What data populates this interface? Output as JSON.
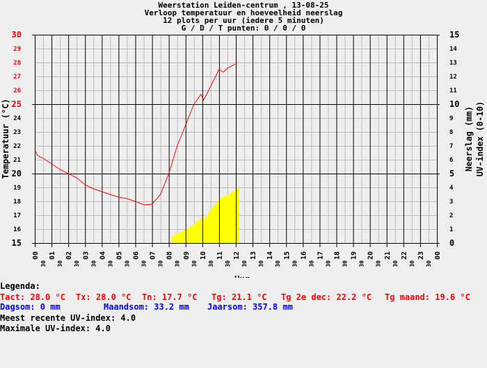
{
  "title_lines": [
    "Weerstation Leiden-centrum , 13-08-25",
    "Verloop temperatuur en hoeveelheid neerslag",
    "12 plots per uur (iedere 5 minuten)",
    "G / D / T punten: 0 / 0 / 0"
  ],
  "colors": {
    "background": "#eeeeee",
    "temperature": "#ff0000",
    "uv": "#ffff00",
    "grid_minor": "#bbbbbb",
    "grid_major": "#000000",
    "legend_temp": "#ff0000",
    "legend_rain": "#0000ff"
  },
  "chart_data": {
    "type": "line",
    "xlabel": "Uur",
    "ylabel_left": "Temperatuur (°C)",
    "ylabel_right": [
      "Neerslag (mm)",
      "UV-index (0-10)"
    ],
    "xlim": [
      "00:00",
      "24:00"
    ],
    "ylim_left": [
      15,
      30
    ],
    "ylim_right": [
      0,
      15
    ],
    "grid": true,
    "x_tick_hours": [
      "00",
      "01",
      "02",
      "03",
      "04",
      "05",
      "06",
      "07",
      "08",
      "09",
      "10",
      "11",
      "12",
      "13",
      "14",
      "15",
      "16",
      "17",
      "18",
      "19",
      "20",
      "21",
      "22",
      "23",
      "00"
    ],
    "x_tick_half": "30",
    "y_ticks_left": [
      15,
      16,
      17,
      18,
      19,
      20,
      21,
      22,
      23,
      24,
      25,
      26,
      27,
      28,
      29,
      30
    ],
    "y_ticks_right": [
      0,
      1,
      2,
      3,
      4,
      5,
      6,
      7,
      8,
      9,
      10,
      11,
      12,
      13,
      14,
      15
    ],
    "series": [
      {
        "type": "line",
        "axis": "left",
        "color": "#ff0000",
        "x": [
          "00:00",
          "00:10",
          "00:30",
          "01:00",
          "01:30",
          "02:00",
          "02:30",
          "03:00",
          "03:30",
          "04:00",
          "04:30",
          "05:00",
          "05:30",
          "06:00",
          "06:30",
          "07:00",
          "07:30",
          "08:00",
          "08:30",
          "09:00",
          "09:30",
          "09:55",
          "10:05",
          "10:30",
          "11:00",
          "11:15",
          "11:30",
          "12:00",
          "12:05"
        ],
        "y": [
          21.7,
          21.3,
          21.1,
          20.7,
          20.3,
          20.0,
          19.7,
          19.2,
          18.9,
          18.7,
          18.5,
          18.3,
          18.2,
          18.0,
          17.75,
          17.8,
          18.5,
          20.0,
          22.0,
          23.5,
          25.0,
          25.7,
          25.3,
          26.3,
          27.5,
          27.3,
          27.6,
          27.9,
          28.0
        ]
      }
    ]
  },
  "uv_series": {
    "type": "area",
    "axis": "right",
    "color": "#ffff00",
    "x": [
      "08:10",
      "08:30",
      "09:00",
      "09:30",
      "10:00",
      "10:05",
      "10:30",
      "11:00",
      "11:30",
      "12:00",
      "12:05"
    ],
    "y": [
      0.5,
      0.7,
      1.0,
      1.4,
      1.95,
      1.7,
      2.5,
      3.2,
      3.5,
      3.9,
      4.0
    ]
  },
  "legend": {
    "heading": "Legenda:",
    "temp": [
      "Tact: 28.0 °C",
      "Tx: 28.0 °C",
      "Tn: 17.7 °C",
      "Tg: 21.1 °C",
      "Tg 2e dec: 22.2 °C",
      "Tg maand: 19.6 °C"
    ],
    "rain": [
      "Dagsom: 0 mm",
      "Maandsom: 33.2 mm",
      "Jaarsom: 357.8 mm"
    ],
    "uv_recent": "Meest recente UV-index: 4.0",
    "uv_max": "Maximale UV-index: 4.0"
  }
}
